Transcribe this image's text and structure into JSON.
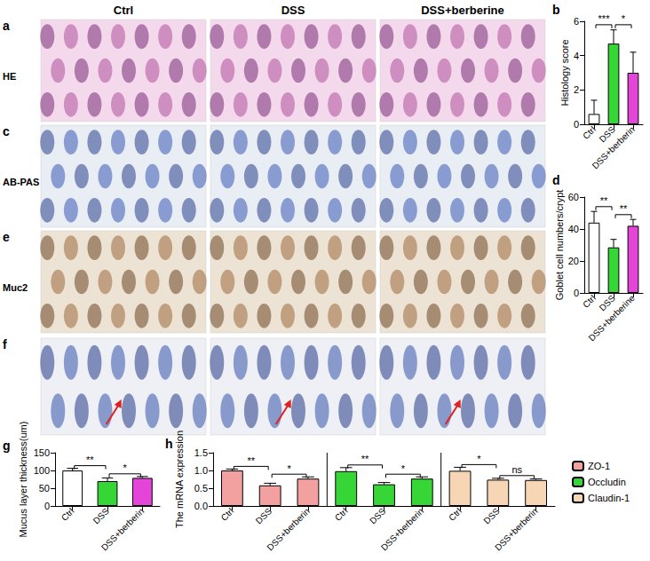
{
  "image_grid": {
    "columns": [
      "Ctrl",
      "DSS",
      "DSS+berberine"
    ],
    "rows": [
      {
        "panel": "a",
        "label": "HE"
      },
      {
        "panel": "c",
        "label": "AB-PAS"
      },
      {
        "panel": "e",
        "label": "Muc2"
      },
      {
        "panel": "f"
      }
    ]
  },
  "chart_data": [
    {
      "panel": "b",
      "type": "bar",
      "y_label": "Histology score",
      "categories": [
        "Ctrl",
        "DSS",
        "DSS+berberin"
      ],
      "values": [
        0.6,
        4.7,
        3.0
      ],
      "errors": [
        0.8,
        0.8,
        1.2
      ],
      "colors": [
        "#ffffff",
        "#36d636",
        "#e444d8"
      ],
      "ylim": [
        0,
        6
      ],
      "yticks": [
        0,
        2,
        4,
        6
      ],
      "grid": false,
      "comparisons": [
        {
          "pair": [
            "Ctrl",
            "DSS"
          ],
          "label": "***"
        },
        {
          "pair": [
            "DSS",
            "DSS+berberin"
          ],
          "label": "*"
        }
      ]
    },
    {
      "panel": "d",
      "type": "bar",
      "y_label": "Goblet cell numbers/crypt",
      "categories": [
        "Ctrl",
        "DSS",
        "DSS+berberine"
      ],
      "values": [
        44,
        28.5,
        42
      ],
      "errors": [
        7,
        5,
        4
      ],
      "colors": [
        "#ffffff",
        "#36d636",
        "#e444d8"
      ],
      "ylim": [
        0,
        60
      ],
      "yticks": [
        0,
        20,
        40,
        60
      ],
      "grid": false,
      "comparisons": [
        {
          "pair": [
            "Ctrl",
            "DSS"
          ],
          "label": "**"
        },
        {
          "pair": [
            "DSS",
            "DSS+berberine"
          ],
          "label": "**"
        }
      ]
    },
    {
      "panel": "g",
      "type": "bar",
      "y_label": "Mucus layer thickness(um)",
      "categories": [
        "Ctrl",
        "DSS",
        "DSS+berberin"
      ],
      "values": [
        100,
        70,
        79
      ],
      "errors": [
        6,
        9,
        4
      ],
      "colors": [
        "#ffffff",
        "#36d636",
        "#e444d8"
      ],
      "ylim": [
        0,
        150
      ],
      "yticks": [
        0,
        50,
        100,
        150
      ],
      "grid": false,
      "comparisons": [
        {
          "pair": [
            "Ctrl",
            "DSS"
          ],
          "label": "**"
        },
        {
          "pair": [
            "DSS",
            "DSS+berberin"
          ],
          "label": "*"
        }
      ]
    },
    {
      "panel": "h",
      "type": "bar",
      "y_label": "The mRNA expression",
      "categories": [
        "Ctrl",
        "DSS",
        "DSS+berberin"
      ],
      "series": [
        {
          "name": "ZO-1",
          "color": "#f2a0a0",
          "values": [
            1.0,
            0.58,
            0.77
          ],
          "errors": [
            0.04,
            0.06,
            0.05
          ],
          "comparisons": [
            {
              "pair": [
                "Ctrl",
                "DSS"
              ],
              "label": "**"
            },
            {
              "pair": [
                "DSS",
                "DSS+berberin"
              ],
              "label": "*"
            }
          ]
        },
        {
          "name": "Occludin",
          "color": "#36d636",
          "values": [
            0.98,
            0.61,
            0.77
          ],
          "errors": [
            0.1,
            0.05,
            0.05
          ],
          "comparisons": [
            {
              "pair": [
                "Ctrl",
                "DSS"
              ],
              "label": "**"
            },
            {
              "pair": [
                "DSS",
                "DSS+berberin"
              ],
              "label": "*"
            }
          ]
        },
        {
          "name": "Claudin-1",
          "color": "#f7d6b6",
          "values": [
            0.99,
            0.74,
            0.73
          ],
          "errors": [
            0.1,
            0.04,
            0.03
          ],
          "comparisons": [
            {
              "pair": [
                "Ctrl",
                "DSS"
              ],
              "label": "*"
            },
            {
              "pair": [
                "DSS",
                "DSS+berberin"
              ],
              "label": "ns"
            }
          ]
        }
      ],
      "ylim": [
        0,
        1.5
      ],
      "yticks": [
        {
          "value": 0,
          "label": "0.0"
        },
        {
          "value": 0.5,
          "label": "0.5"
        },
        {
          "value": 1,
          "label": "1.0"
        },
        {
          "value": 1.5,
          "label": "1.5"
        }
      ],
      "grid": false,
      "legend": "right"
    }
  ]
}
